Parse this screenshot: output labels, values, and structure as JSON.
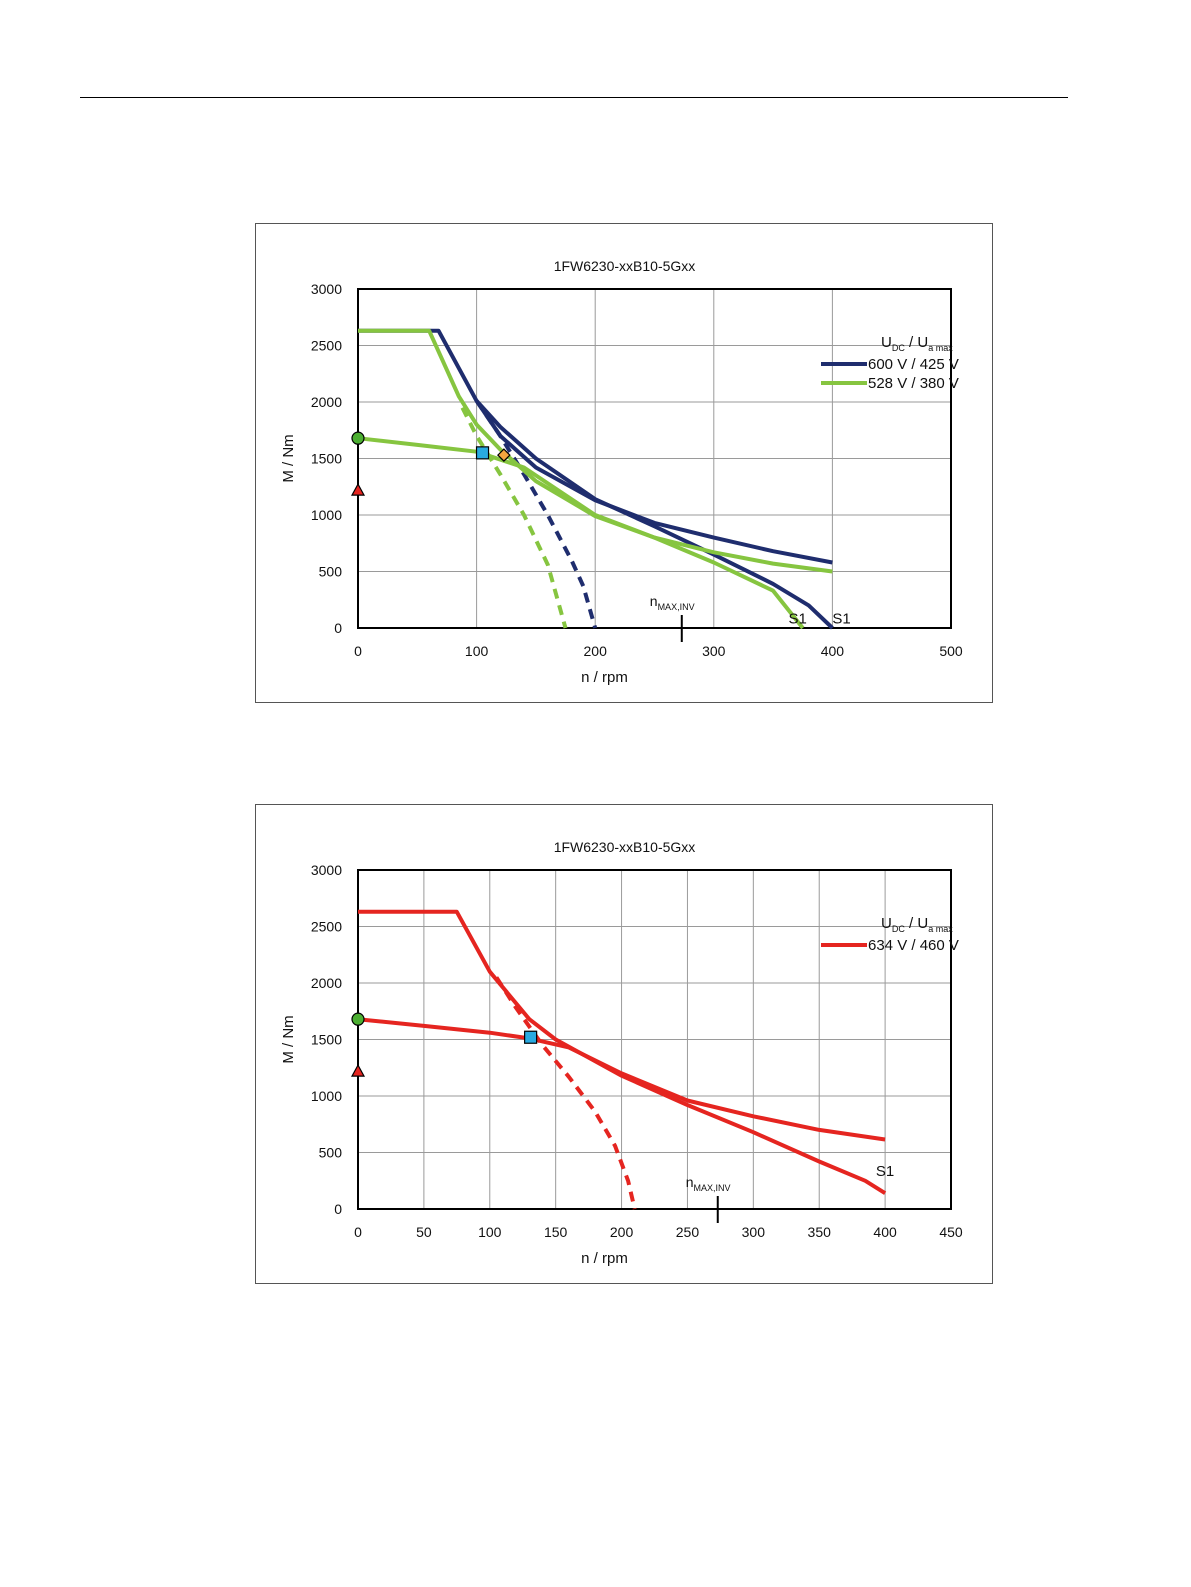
{
  "chart_data": [
    {
      "type": "line",
      "title": "1FW6230-xxB10-5Gxx",
      "xlabel": "n / rpm",
      "ylabel": "M / Nm",
      "xlim": [
        0,
        500
      ],
      "ylim": [
        0,
        3000
      ],
      "xticks": [
        "0",
        "100",
        "200",
        "300",
        "400",
        "500"
      ],
      "yticks": [
        "0",
        "500",
        "1000",
        "1500",
        "2000",
        "2500",
        "3000"
      ],
      "grid": true,
      "legend_position": "top-right",
      "legend_title": {
        "main1": "U",
        "sub1": "DC",
        "sep": " / ",
        "main2": "U",
        "sub2": "a max"
      },
      "nmax_label": {
        "main": "n",
        "sub": "MAX,INV"
      },
      "nmax": 273,
      "series": [
        {
          "name": "600 V / 425 V",
          "color": "#1f2d6e",
          "curves": [
            {
              "style": "solid",
              "points": [
                [
                  0,
                  2630
                ],
                [
                  68,
                  2630
                ],
                [
                  100,
                  2010
                ],
                [
                  120,
                  1780
                ],
                [
                  150,
                  1500
                ],
                [
                  200,
                  1140
                ],
                [
                  250,
                  900
                ],
                [
                  300,
                  650
                ],
                [
                  350,
                  390
                ],
                [
                  380,
                  200
                ],
                [
                  400,
                  0
                ]
              ]
            },
            {
              "style": "solid",
              "points": [
                [
                  100,
                  2010
                ],
                [
                  120,
                  1700
                ],
                [
                  150,
                  1420
                ],
                [
                  200,
                  1130
                ],
                [
                  250,
                  930
                ],
                [
                  300,
                  800
                ],
                [
                  350,
                  680
                ],
                [
                  400,
                  580
                ]
              ]
            },
            {
              "style": "dashed",
              "points": [
                [
                  100,
                  2010
                ],
                [
                  120,
                  1700
                ],
                [
                  140,
                  1360
                ],
                [
                  160,
                  1000
                ],
                [
                  180,
                  600
                ],
                [
                  190,
                  370
                ],
                [
                  200,
                  0
                ]
              ]
            }
          ]
        },
        {
          "name": "528 V / 380 V",
          "color": "#86c540",
          "curves": [
            {
              "style": "solid",
              "points": [
                [
                  0,
                  2630
                ],
                [
                  60,
                  2630
                ],
                [
                  85,
                  2050
                ],
                [
                  100,
                  1800
                ],
                [
                  120,
                  1580
                ],
                [
                  150,
                  1300
                ],
                [
                  200,
                  990
                ],
                [
                  250,
                  800
                ],
                [
                  300,
                  580
                ],
                [
                  350,
                  330
                ],
                [
                  375,
                  0
                ]
              ]
            },
            {
              "style": "solid",
              "points": [
                [
                  0,
                  1680
                ],
                [
                  50,
                  1620
                ],
                [
                  100,
                  1560
                ],
                [
                  140,
                  1420
                ],
                [
                  200,
                  1000
                ],
                [
                  250,
                  800
                ],
                [
                  300,
                  670
                ],
                [
                  350,
                  570
                ],
                [
                  400,
                  500
                ]
              ]
            },
            {
              "style": "dashed",
              "points": [
                [
                  88,
                  1950
                ],
                [
                  100,
                  1700
                ],
                [
                  120,
                  1360
                ],
                [
                  140,
                  1000
                ],
                [
                  160,
                  560
                ],
                [
                  175,
                  0
                ]
              ]
            }
          ]
        }
      ],
      "markers": [
        {
          "shape": "circle",
          "color": "#4caf32",
          "x": 0,
          "y": 1680
        },
        {
          "shape": "triangle",
          "color": "#e52520",
          "x": 0,
          "y": 1220
        },
        {
          "shape": "square",
          "color": "#29aae1",
          "x": 105,
          "y": 1550
        },
        {
          "shape": "diamond",
          "color": "#f4a53f",
          "x": 123,
          "y": 1530
        }
      ],
      "annotations": [
        {
          "text": "S1",
          "x": 363,
          "y": 40
        },
        {
          "text": "S1",
          "x": 400,
          "y": 40
        }
      ]
    },
    {
      "type": "line",
      "title": "1FW6230-xxB10-5Gxx",
      "xlabel": "n / rpm",
      "ylabel": "M / Nm",
      "xlim": [
        0,
        450
      ],
      "ylim": [
        0,
        3000
      ],
      "xticks": [
        "0",
        "50",
        "100",
        "150",
        "200",
        "250",
        "300",
        "350",
        "400",
        "450"
      ],
      "yticks": [
        "0",
        "500",
        "1000",
        "1500",
        "2000",
        "2500",
        "3000"
      ],
      "grid": true,
      "legend_position": "top-right",
      "legend_title": {
        "main1": "U",
        "sub1": "DC",
        "sep": " / ",
        "main2": "U",
        "sub2": "a max"
      },
      "nmax_label": {
        "main": "n",
        "sub": "MAX,INV"
      },
      "nmax": 273,
      "series": [
        {
          "name": "634 V / 460 V",
          "color": "#e52520",
          "curves": [
            {
              "style": "solid",
              "points": [
                [
                  0,
                  2630
                ],
                [
                  75,
                  2630
                ],
                [
                  100,
                  2100
                ],
                [
                  130,
                  1680
                ],
                [
                  150,
                  1500
                ],
                [
                  200,
                  1180
                ],
                [
                  250,
                  920
                ],
                [
                  300,
                  680
                ],
                [
                  350,
                  420
                ],
                [
                  385,
                  250
                ],
                [
                  400,
                  140
                ]
              ]
            },
            {
              "style": "solid",
              "points": [
                [
                  0,
                  1680
                ],
                [
                  50,
                  1620
                ],
                [
                  100,
                  1560
                ],
                [
                  130,
                  1510
                ],
                [
                  160,
                  1430
                ],
                [
                  200,
                  1200
                ],
                [
                  250,
                  960
                ],
                [
                  300,
                  820
                ],
                [
                  350,
                  700
                ],
                [
                  400,
                  615
                ]
              ]
            },
            {
              "style": "dashed",
              "points": [
                [
                  105,
                  2050
                ],
                [
                  120,
                  1780
                ],
                [
                  140,
                  1450
                ],
                [
                  160,
                  1170
                ],
                [
                  180,
                  860
                ],
                [
                  195,
                  560
                ],
                [
                  205,
                  250
                ],
                [
                  210,
                  0
                ]
              ]
            }
          ]
        }
      ],
      "markers": [
        {
          "shape": "circle",
          "color": "#4caf32",
          "x": 0,
          "y": 1680
        },
        {
          "shape": "triangle",
          "color": "#e52520",
          "x": 0,
          "y": 1220
        },
        {
          "shape": "square",
          "color": "#29aae1",
          "x": 131,
          "y": 1520
        }
      ],
      "annotations": [
        {
          "text": "S1",
          "x": 393,
          "y": 290
        }
      ]
    }
  ]
}
